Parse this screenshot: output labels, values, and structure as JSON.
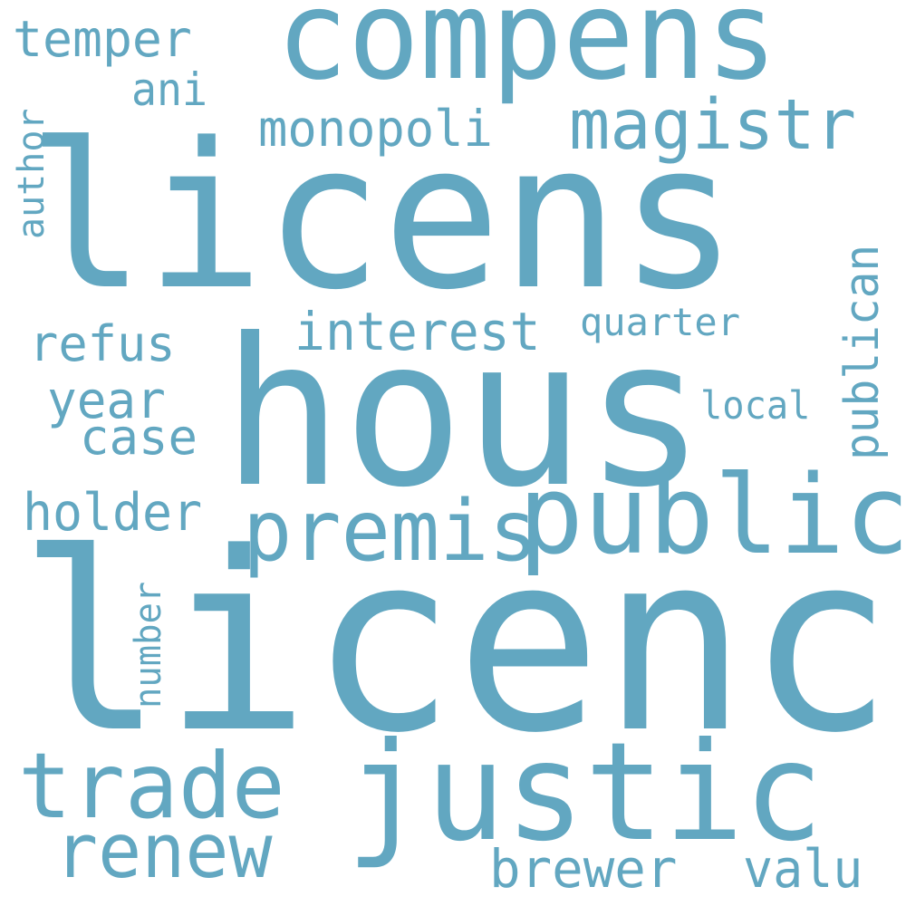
{
  "cloud": {
    "color": "#62a7c1",
    "words": [
      {
        "id": "compens",
        "text": "compens",
        "vertical": false
      },
      {
        "id": "licens",
        "text": "licens",
        "vertical": false
      },
      {
        "id": "hous",
        "text": "hous",
        "vertical": false
      },
      {
        "id": "licenc",
        "text": "licenc",
        "vertical": false
      },
      {
        "id": "justic",
        "text": "justic",
        "vertical": false
      },
      {
        "id": "public",
        "text": "public",
        "vertical": false
      },
      {
        "id": "premis",
        "text": "premis",
        "vertical": false
      },
      {
        "id": "trade",
        "text": "trade",
        "vertical": false
      },
      {
        "id": "renew",
        "text": "renew",
        "vertical": false
      },
      {
        "id": "magistr",
        "text": "magistr",
        "vertical": false
      },
      {
        "id": "monopoli",
        "text": "monopoli",
        "vertical": false
      },
      {
        "id": "interest",
        "text": "interest",
        "vertical": false
      },
      {
        "id": "temper",
        "text": "temper",
        "vertical": false
      },
      {
        "id": "ani",
        "text": "ani",
        "vertical": false
      },
      {
        "id": "refus",
        "text": "refus",
        "vertical": false
      },
      {
        "id": "year",
        "text": "year",
        "vertical": false
      },
      {
        "id": "case",
        "text": "case",
        "vertical": false
      },
      {
        "id": "holder",
        "text": "holder",
        "vertical": false
      },
      {
        "id": "quarter",
        "text": "quarter",
        "vertical": false
      },
      {
        "id": "local",
        "text": "local",
        "vertical": false
      },
      {
        "id": "brewer",
        "text": "brewer",
        "vertical": false
      },
      {
        "id": "valu",
        "text": "valu",
        "vertical": false
      },
      {
        "id": "author",
        "text": "author",
        "vertical": true
      },
      {
        "id": "publican",
        "text": "publican",
        "vertical": true
      },
      {
        "id": "number",
        "text": "number",
        "vertical": true
      }
    ]
  }
}
